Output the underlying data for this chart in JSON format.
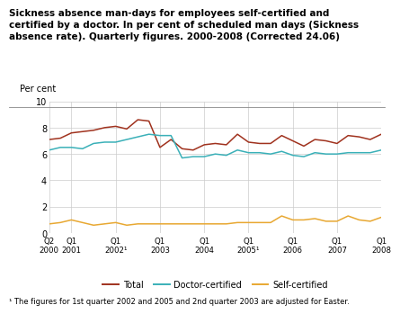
{
  "title_line1": "Sickness absence man-days for employees self-certified and",
  "title_line2": "certified by a doctor. In per cent of scheduled man days (Sickness",
  "title_line3": "absence rate). Quarterly figures. 2000-2008 (Corrected 24.06)",
  "ylabel": "Per cent",
  "footnote": "¹ The figures for 1st quarter 2002 and 2005 and 2nd quarter 2003 are adjusted for Easter.",
  "ylim": [
    0,
    10
  ],
  "yticks": [
    0,
    2,
    4,
    6,
    8,
    10
  ],
  "total_color": "#a0321e",
  "doctor_color": "#3ab0b8",
  "self_color": "#e8a832",
  "tick_labels": [
    "Q2\n2000",
    "Q1\n2001",
    "Q1\n2002¹",
    "Q1\n2003",
    "Q1\n2004",
    "Q1\n2005¹",
    "Q1\n2006",
    "Q1\n2007",
    "Q1\n2008"
  ],
  "tick_positions": [
    0,
    2,
    6,
    10,
    14,
    18,
    22,
    26,
    30
  ],
  "total": [
    7.1,
    7.2,
    7.6,
    7.7,
    7.8,
    8.0,
    8.1,
    7.9,
    8.6,
    8.5,
    6.5,
    7.1,
    6.4,
    6.3,
    6.7,
    6.8,
    6.7,
    7.5,
    6.9,
    6.8,
    6.8,
    7.4,
    7.0,
    6.6,
    7.1,
    7.0,
    6.8,
    7.4,
    7.3,
    7.1,
    7.5
  ],
  "doctor": [
    6.3,
    6.5,
    6.5,
    6.4,
    6.8,
    6.9,
    6.9,
    7.1,
    7.3,
    7.5,
    7.4,
    7.4,
    5.7,
    5.8,
    5.8,
    6.0,
    5.9,
    6.3,
    6.1,
    6.1,
    6.0,
    6.2,
    5.9,
    5.8,
    6.1,
    6.0,
    6.0,
    6.1,
    6.1,
    6.1,
    6.3
  ],
  "self": [
    0.7,
    0.8,
    1.0,
    0.8,
    0.6,
    0.7,
    0.8,
    0.6,
    0.7,
    0.7,
    0.7,
    0.7,
    0.7,
    0.7,
    0.7,
    0.7,
    0.7,
    0.8,
    0.8,
    0.8,
    0.8,
    1.3,
    1.0,
    1.0,
    1.1,
    0.9,
    0.9,
    1.3,
    1.0,
    0.9,
    1.2
  ],
  "legend_labels": [
    "Total",
    "Doctor-certified",
    "Self-certified"
  ],
  "bg_color": "#ffffff",
  "grid_color": "#cccccc"
}
